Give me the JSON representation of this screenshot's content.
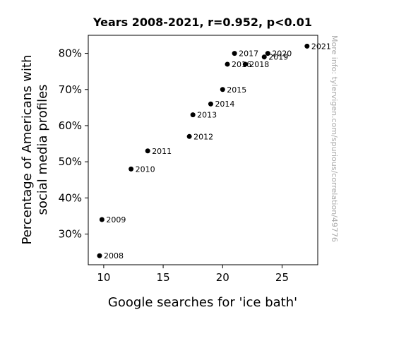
{
  "chart_data": {
    "type": "scatter",
    "title": "Years 2008-2021, r=0.952, p<0.01",
    "xlabel": "Google searches for 'ice bath'",
    "ylabel_lines": [
      "Percentage of Americans with",
      "social media profiles"
    ],
    "xlim": [
      8.7,
      28.0
    ],
    "ylim": [
      21.5,
      85.0
    ],
    "x_ticks": [
      10,
      15,
      20,
      25
    ],
    "x_tick_labels": [
      "10",
      "15",
      "20",
      "25"
    ],
    "y_ticks": [
      30,
      40,
      50,
      60,
      70,
      80
    ],
    "y_tick_labels": [
      "30%",
      "40%",
      "50%",
      "60%",
      "70%",
      "80%"
    ],
    "grid": false,
    "point_color": "#000000",
    "points": [
      {
        "label": "2008",
        "x": 9.65,
        "y": 24
      },
      {
        "label": "2009",
        "x": 9.85,
        "y": 34
      },
      {
        "label": "2010",
        "x": 12.3,
        "y": 48
      },
      {
        "label": "2011",
        "x": 13.7,
        "y": 53
      },
      {
        "label": "2012",
        "x": 17.2,
        "y": 57
      },
      {
        "label": "2013",
        "x": 17.5,
        "y": 63
      },
      {
        "label": "2014",
        "x": 19.0,
        "y": 66
      },
      {
        "label": "2015",
        "x": 20.0,
        "y": 70
      },
      {
        "label": "2016",
        "x": 20.4,
        "y": 77
      },
      {
        "label": "2017",
        "x": 21.0,
        "y": 80
      },
      {
        "label": "2018",
        "x": 21.9,
        "y": 77
      },
      {
        "label": "2019",
        "x": 23.5,
        "y": 79
      },
      {
        "label": "2020",
        "x": 23.8,
        "y": 80
      },
      {
        "label": "2021",
        "x": 27.1,
        "y": 82
      }
    ]
  },
  "watermark": "More info: tylervigen.com/spurious/correlation/49776"
}
